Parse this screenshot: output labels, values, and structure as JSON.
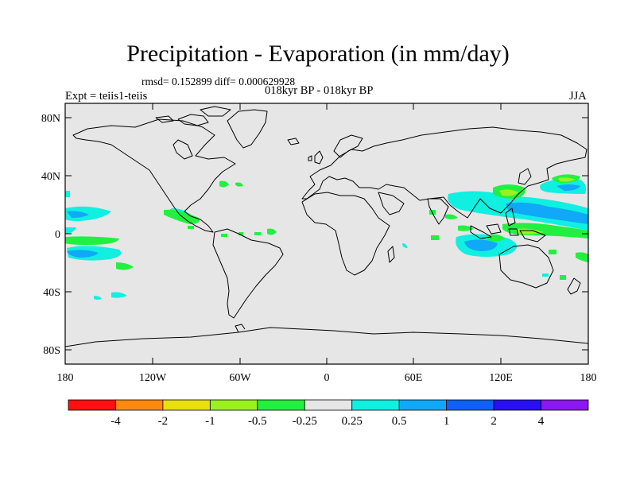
{
  "title": "Precipitation - Evaporation (in mm/day)",
  "stats": "rmsd= 0.152899 diff= 0.000629928",
  "subtitle": "018kyr BP - 018kyr BP",
  "experiment": "Expt = teiis1-teiis",
  "season": "JJA",
  "axes": {
    "lat_labels": [
      "80N",
      "40N",
      "0",
      "40S",
      "80S"
    ],
    "lon_labels": [
      "180",
      "120W",
      "60W",
      "0",
      "60E",
      "120E",
      "180"
    ]
  },
  "colorbar": {
    "labels": [
      "-4",
      "-2",
      "-1",
      "-0.5",
      "-0.25",
      "0.25",
      "0.5",
      "1",
      "2",
      "4"
    ],
    "colors": [
      "#ff1010",
      "#ff8a10",
      "#e8e010",
      "#9cf020",
      "#22f040",
      "#e6e6e6",
      "#10f0e0",
      "#10a8f8",
      "#1060f8",
      "#2810f0",
      "#8a18f0"
    ]
  },
  "colors": {
    "ocean": "#e6e6e6",
    "coast": "#000000",
    "frame": "#000000"
  }
}
